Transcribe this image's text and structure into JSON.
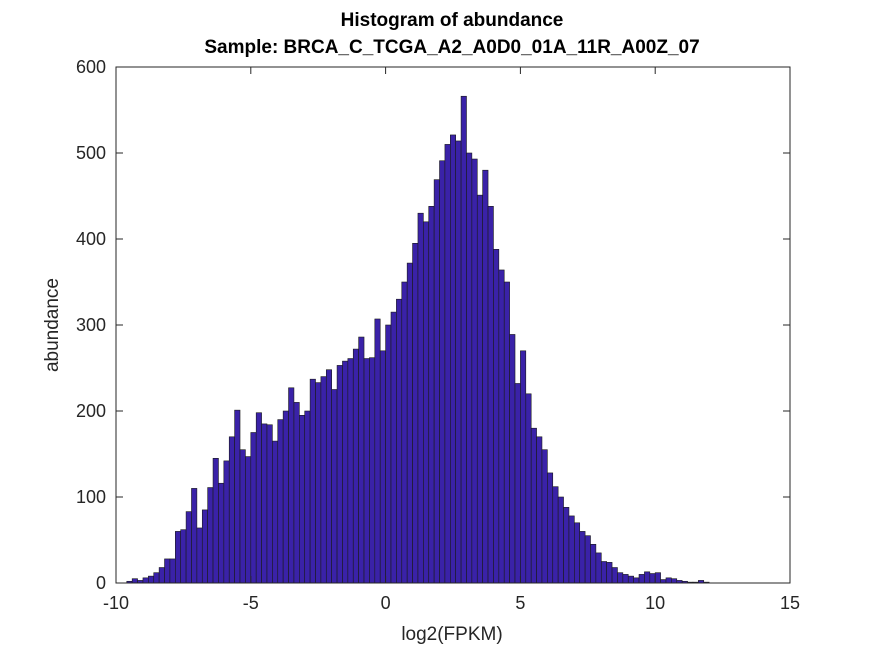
{
  "chart_data": {
    "type": "bar",
    "title": "Histogram of abundance",
    "subtitle": "Sample: BRCA_C_TCGA_A2_A0D0_01A_11R_A00Z_07",
    "xlabel": "log2(FPKM)",
    "ylabel": "abundance",
    "xlim": [
      -10,
      15
    ],
    "ylim": [
      0,
      600
    ],
    "xticks": [
      "-10",
      "-5",
      "0",
      "5",
      "10",
      "15"
    ],
    "xtick_values": [
      -10,
      -5,
      0,
      5,
      10,
      15
    ],
    "yticks": [
      "0",
      "100",
      "200",
      "300",
      "400",
      "500",
      "600"
    ],
    "ytick_values": [
      0,
      100,
      200,
      300,
      400,
      500,
      600
    ],
    "grid": false,
    "bar_color": "#3a22a8",
    "bin_start": -9.6,
    "bin_width": 0.2,
    "values": [
      2,
      5,
      3,
      6,
      8,
      12,
      18,
      28,
      28,
      60,
      62,
      83,
      110,
      64,
      85,
      111,
      145,
      116,
      142,
      170,
      201,
      155,
      147,
      175,
      198,
      185,
      184,
      165,
      190,
      200,
      227,
      210,
      195,
      200,
      237,
      233,
      240,
      248,
      225,
      253,
      258,
      261,
      272,
      286,
      261,
      262,
      307,
      270,
      300,
      315,
      330,
      350,
      372,
      395,
      430,
      420,
      438,
      469,
      491,
      510,
      521,
      514,
      566,
      500,
      493,
      451,
      480,
      438,
      388,
      364,
      350,
      289,
      232,
      270,
      220,
      180,
      170,
      155,
      128,
      112,
      100,
      88,
      78,
      70,
      60,
      55,
      45,
      35,
      25,
      24,
      18,
      12,
      10,
      8,
      6,
      10,
      13,
      11,
      12,
      4,
      6,
      5,
      3,
      2,
      1,
      1,
      3,
      1
    ]
  }
}
